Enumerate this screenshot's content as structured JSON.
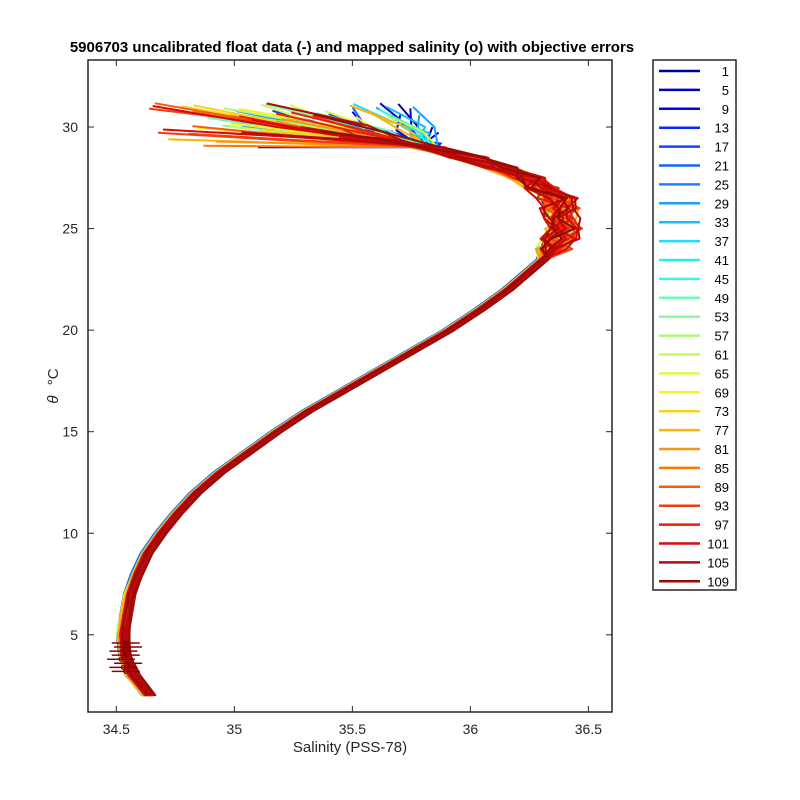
{
  "chart_data": {
    "type": "line",
    "title": "5906703 uncalibrated float data (-) and mapped salinity (o) with objective errors",
    "xlabel": "Salinity (PSS-78)",
    "ylabel_symbol": "θ",
    "ylabel_unit": "°C",
    "xlim": [
      34.38,
      36.6
    ],
    "ylim": [
      1.2,
      33.3
    ],
    "xticks": [
      34.5,
      35,
      35.5,
      36,
      36.5
    ],
    "xtick_labels": [
      "34.5",
      "35",
      "35.5",
      "36",
      "36.5"
    ],
    "yticks": [
      5,
      10,
      15,
      20,
      25,
      30
    ],
    "ytick_labels": [
      "5",
      "10",
      "15",
      "20",
      "25",
      "30"
    ],
    "grid": false,
    "legend_position": "outside-right",
    "series": [
      {
        "name": "1",
        "color": "#00008F"
      },
      {
        "name": "5",
        "color": "#0000BF"
      },
      {
        "name": "9",
        "color": "#0000EF"
      },
      {
        "name": "13",
        "color": "#0020FF"
      },
      {
        "name": "17",
        "color": "#0050FF"
      },
      {
        "name": "21",
        "color": "#0080FF"
      },
      {
        "name": "25",
        "color": "#00B0FF"
      },
      {
        "name": "29",
        "color": "#00E0FF"
      },
      {
        "name": "33",
        "color": "#10FFEF"
      },
      {
        "name": "37",
        "color": "#40FFBF"
      },
      {
        "name": "41",
        "color": "#70FF8F"
      },
      {
        "name": "45",
        "color": "#A0FF60"
      },
      {
        "name": "49",
        "color": "#D0FF30"
      },
      {
        "name": "53",
        "color": "#FFFF00"
      },
      {
        "name": "57",
        "color": "#FFCF00"
      },
      {
        "name": "61",
        "color": "#FF9F00"
      },
      {
        "name": "65",
        "color": "#FF7000"
      },
      {
        "name": "69",
        "color": "#FF4000"
      },
      {
        "name": "73",
        "color": "#FF1000"
      },
      {
        "name": "77",
        "color": "#DF0000"
      },
      {
        "name": "81",
        "color": "#AF0000"
      },
      {
        "name": "85",
        "color": "#800000"
      },
      {
        "name": "89",
        "color": "#800000"
      },
      {
        "name": "93",
        "color": "#800000"
      },
      {
        "name": "97",
        "color": "#800000"
      },
      {
        "name": "101",
        "color": "#800000"
      },
      {
        "name": "105",
        "color": "#800000"
      },
      {
        "name": "109",
        "color": "#800000"
      }
    ],
    "legend_entries": [
      "1",
      "5",
      "9",
      "13",
      "17",
      "21",
      "25",
      "29",
      "33",
      "37",
      "41",
      "45",
      "49",
      "53",
      "57",
      "61",
      "65",
      "69",
      "73",
      "77",
      "81",
      "85",
      "89",
      "93",
      "97",
      "101",
      "105",
      "109"
    ],
    "legend_colors": [
      "#000096",
      "#0000C8",
      "#0000F0",
      "#0A28FA",
      "#1046FF",
      "#1464FF",
      "#1A82FF",
      "#1EA0FF",
      "#10BEFF",
      "#1EDCFF",
      "#28F0F0",
      "#3CF8D2",
      "#6EFAB4",
      "#8CFA96",
      "#AAFA78",
      "#C8FA5A",
      "#E6FA3C",
      "#FAF01E",
      "#FAD214",
      "#FAB40A",
      "#FA960A",
      "#FA780A",
      "#FA5A0A",
      "#F53C0A",
      "#EB1E0A",
      "#D20A0A",
      "#B40A0A",
      "#960A0A"
    ],
    "profile_mean": {
      "theta": [
        2.0,
        3.0,
        4.0,
        5.0,
        6.0,
        7.0,
        8.0,
        9.0,
        10.0,
        11.0,
        12.0,
        13.0,
        14.0,
        15.0,
        16.0,
        17.0,
        18.0,
        19.0,
        20.0,
        21.0,
        22.0,
        23.0,
        23.5,
        24.0,
        24.5,
        25.0,
        25.5,
        26.0,
        26.5,
        27.0,
        27.5,
        28.0,
        28.5,
        29.0
      ],
      "salinity": [
        34.63,
        34.56,
        34.53,
        34.52,
        34.535,
        34.55,
        34.58,
        34.62,
        34.68,
        34.75,
        34.83,
        34.93,
        35.05,
        35.17,
        35.3,
        35.45,
        35.6,
        35.75,
        35.9,
        36.03,
        36.15,
        36.25,
        36.3,
        36.34,
        36.37,
        36.38,
        36.38,
        36.37,
        36.35,
        36.3,
        36.22,
        36.12,
        35.98,
        35.8
      ]
    },
    "mapped_salinity_points": {
      "theta": [
        3.2,
        3.4,
        3.6,
        3.8,
        4.0,
        4.2,
        4.4,
        4.6
      ],
      "salinity": [
        34.54,
        34.53,
        34.55,
        34.52,
        34.54,
        34.53,
        34.55,
        34.54
      ]
    }
  }
}
